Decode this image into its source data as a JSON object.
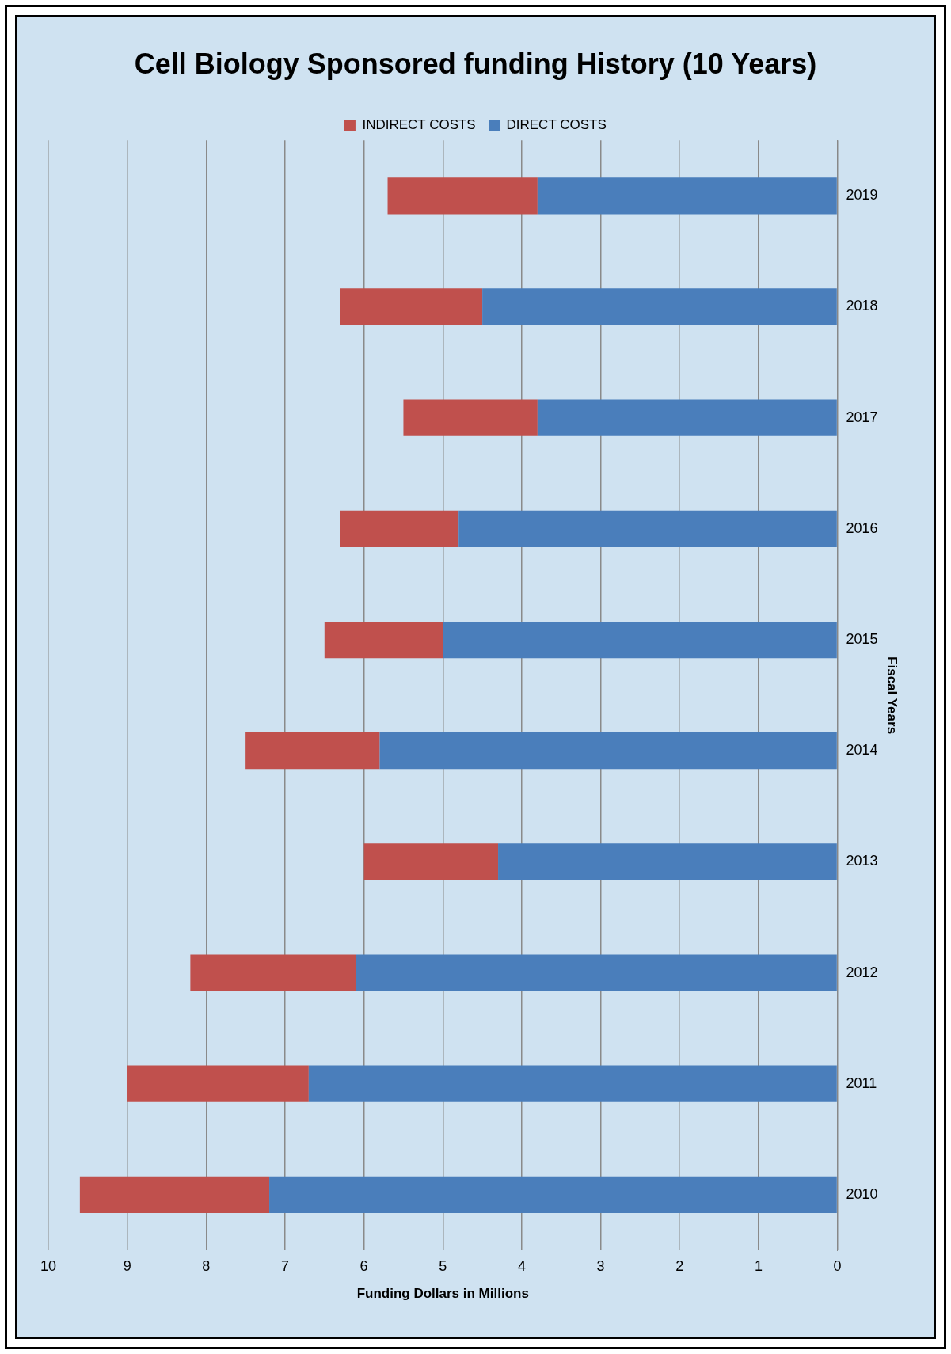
{
  "chart_data": {
    "type": "bar",
    "orientation": "horizontal",
    "title": "Cell Biology Sponsored funding History (10 Years)",
    "ylabel": "Fiscal Years",
    "xlabel": "Funding Dollars in Millions",
    "categories": [
      "2019",
      "2018",
      "2017",
      "2016",
      "2015",
      "2014",
      "2013",
      "2012",
      "2011",
      "2010"
    ],
    "series": [
      {
        "name": "DIRECT COSTS",
        "color": "#4a7ebb",
        "values": [
          3.8,
          4.5,
          3.8,
          4.8,
          5.0,
          5.8,
          4.3,
          6.1,
          6.7,
          7.2
        ]
      },
      {
        "name": "INDIRECT COSTS",
        "color": "#c0504d",
        "values": [
          1.9,
          1.8,
          1.7,
          1.5,
          1.5,
          1.7,
          1.7,
          2.1,
          2.3,
          2.4
        ]
      }
    ],
    "stacked": true,
    "xlim": [
      10,
      0
    ],
    "xticks": [
      10,
      9,
      8,
      7,
      6,
      5,
      4,
      3,
      2,
      1,
      0
    ],
    "grid": "x",
    "legend": "top"
  }
}
